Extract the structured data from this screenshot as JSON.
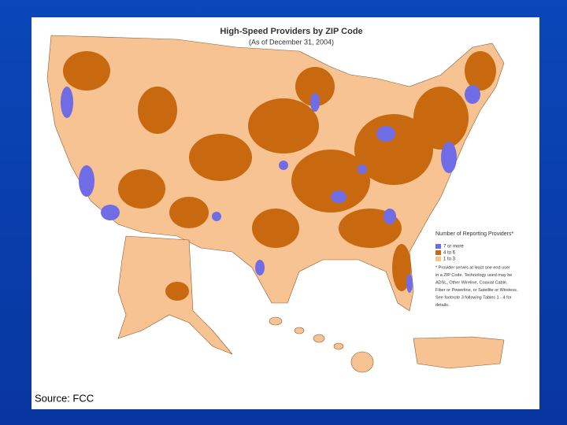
{
  "map": {
    "title": "High-Speed Providers by ZIP Code",
    "subtitle": "(As of December 31, 2004)",
    "legend": {
      "title": "Number of Reporting Providers*",
      "items": [
        {
          "label": "7 or more",
          "color": "#6f6ce6"
        },
        {
          "label": "4 to 6",
          "color": "#c8680f"
        },
        {
          "label": "1 to 3",
          "color": "#f8c392"
        }
      ]
    },
    "note_lines": [
      "* Provider serves at least one end user",
      "in a ZIP Code. Technology used may be",
      "ADSL, Other Wireline, Coaxial Cable,",
      "Fiber or Powerline, or Satellite or Wireless.",
      "See footnote 3 following Tables 1 - 4 for",
      "details."
    ]
  },
  "source": "Source:  FCC"
}
